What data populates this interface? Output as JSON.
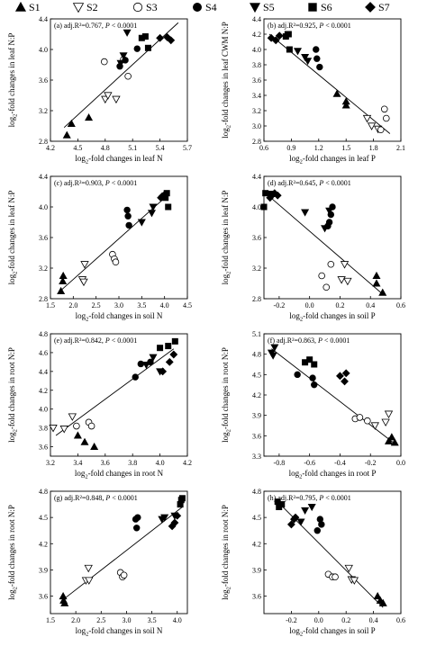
{
  "legend": [
    {
      "label": "S1",
      "marker": "triangle-up-filled"
    },
    {
      "label": "S2",
      "marker": "triangle-down-open"
    },
    {
      "label": "S3",
      "marker": "circle-open"
    },
    {
      "label": "S4",
      "marker": "circle-filled"
    },
    {
      "label": "S5",
      "marker": "triangle-down-filled"
    },
    {
      "label": "S6",
      "marker": "square-filled"
    },
    {
      "label": "S7",
      "marker": "diamond-filled"
    }
  ],
  "chart_data": [
    {
      "type": "scatter",
      "panel": "(a)",
      "stats": "adj.R²=0.767, P < 0.0001",
      "xlabel": "log2-fold changes in leaf N",
      "ylabel": "log2-fold changes in leaf N:P",
      "xlim": [
        4.2,
        5.7
      ],
      "ylim": [
        2.8,
        4.4
      ],
      "xticks": [
        4.2,
        4.5,
        4.8,
        5.1,
        5.4,
        5.7
      ],
      "yticks": [
        2.8,
        3.2,
        3.6,
        4.0,
        4.4
      ],
      "xtick_labels": [
        "4.2",
        "4.5",
        "4.8",
        "5.1",
        "5.4",
        "5.7"
      ],
      "ytick_labels": [
        "2.8",
        "3.2",
        "3.6",
        "4.0",
        "4.4"
      ],
      "fit": [
        [
          4.35,
          2.98
        ],
        [
          5.6,
          4.35
        ]
      ],
      "series": [
        {
          "name": "S1",
          "x": [
            4.38,
            4.43,
            4.62
          ],
          "y": [
            2.88,
            3.03,
            3.11
          ]
        },
        {
          "name": "S2",
          "x": [
            4.8,
            4.83,
            4.92
          ],
          "y": [
            3.35,
            3.4,
            3.35
          ]
        },
        {
          "name": "S3",
          "x": [
            4.79,
            5.0,
            5.05
          ],
          "y": [
            3.84,
            3.87,
            3.65
          ]
        },
        {
          "name": "S4",
          "x": [
            4.96,
            5.02,
            5.15
          ],
          "y": [
            3.78,
            3.86,
            4.01
          ]
        },
        {
          "name": "S5",
          "x": [
            4.97,
            5.0,
            5.04
          ],
          "y": [
            3.82,
            3.92,
            4.22
          ]
        },
        {
          "name": "S6",
          "x": [
            5.2,
            5.24,
            5.27
          ],
          "y": [
            4.15,
            4.17,
            4.02
          ]
        },
        {
          "name": "S7",
          "x": [
            5.4,
            5.48,
            5.52
          ],
          "y": [
            4.15,
            4.16,
            4.12
          ]
        }
      ]
    },
    {
      "type": "scatter",
      "panel": "(b)",
      "stats": "adj.R²=0.925, P < 0.0001",
      "xlabel": "log2-fold changes in leaf P",
      "ylabel": "log2-fold changes in leaf CWM N:P",
      "xlim": [
        0.6,
        2.1
      ],
      "ylim": [
        2.8,
        4.4
      ],
      "xticks": [
        0.6,
        0.9,
        1.2,
        1.5,
        1.8,
        2.1
      ],
      "yticks": [
        2.8,
        3.0,
        3.2,
        3.4,
        3.6,
        3.8,
        4.0,
        4.2,
        4.4
      ],
      "xtick_labels": [
        "0.6",
        "0.9",
        "1.2",
        "1.5",
        "1.8",
        "2.1"
      ],
      "ytick_labels": [
        "2.8",
        "3.0",
        "3.2",
        "3.4",
        "3.6",
        "3.8",
        "4.0",
        "4.2",
        "4.4"
      ],
      "fit": [
        [
          0.66,
          4.2
        ],
        [
          1.98,
          2.9
        ]
      ],
      "series": [
        {
          "name": "S1",
          "x": [
            1.4,
            1.5,
            1.5
          ],
          "y": [
            3.42,
            3.32,
            3.27
          ]
        },
        {
          "name": "S2",
          "x": [
            1.73,
            1.78,
            1.85
          ],
          "y": [
            3.1,
            3.0,
            2.96
          ]
        },
        {
          "name": "S3",
          "x": [
            1.88,
            1.92,
            1.94
          ],
          "y": [
            2.95,
            3.22,
            3.1
          ]
        },
        {
          "name": "S4",
          "x": [
            1.17,
            1.18,
            1.21
          ],
          "y": [
            4.0,
            3.88,
            3.77
          ]
        },
        {
          "name": "S5",
          "x": [
            0.97,
            1.05,
            1.08
          ],
          "y": [
            3.98,
            3.9,
            3.85
          ]
        },
        {
          "name": "S6",
          "x": [
            0.84,
            0.86,
            0.87,
            0.88
          ],
          "y": [
            4.17,
            4.2,
            4.2,
            4.0
          ]
        },
        {
          "name": "S7",
          "x": [
            0.68,
            0.73,
            0.77
          ],
          "y": [
            4.15,
            4.12,
            4.18
          ]
        }
      ]
    },
    {
      "type": "scatter",
      "panel": "(c)",
      "stats": "adj.R²=0.903, P < 0.0001",
      "xlabel": "log2-fold changes in soil N",
      "ylabel": "log2-fold changes in leaf N:P",
      "xlim": [
        1.5,
        4.5
      ],
      "ylim": [
        2.8,
        4.4
      ],
      "xticks": [
        1.5,
        2.0,
        2.5,
        3.0,
        3.5,
        4.0,
        4.5
      ],
      "yticks": [
        2.8,
        3.2,
        3.6,
        4.0,
        4.4
      ],
      "xtick_labels": [
        "1.5",
        "2.0",
        "2.5",
        "3.0",
        "3.5",
        "4.0",
        "4.5"
      ],
      "ytick_labels": [
        "2.8",
        "3.2",
        "3.6",
        "4.0",
        "4.4"
      ],
      "fit": [
        [
          1.75,
          2.92
        ],
        [
          4.1,
          4.17
        ]
      ],
      "series": [
        {
          "name": "S1",
          "x": [
            1.73,
            1.77,
            1.78
          ],
          "y": [
            2.9,
            3.03,
            3.1
          ]
        },
        {
          "name": "S2",
          "x": [
            2.2,
            2.23,
            2.25
          ],
          "y": [
            3.05,
            3.02,
            3.25
          ]
        },
        {
          "name": "S3",
          "x": [
            2.86,
            2.9,
            2.93
          ],
          "y": [
            3.38,
            3.32,
            3.28
          ]
        },
        {
          "name": "S4",
          "x": [
            3.18,
            3.2,
            3.22
          ],
          "y": [
            3.96,
            3.88,
            3.76
          ]
        },
        {
          "name": "S5",
          "x": [
            3.5,
            3.72,
            3.75
          ],
          "y": [
            3.8,
            3.92,
            4.0
          ]
        },
        {
          "name": "S6",
          "x": [
            4.02,
            4.05,
            4.08
          ],
          "y": [
            4.12,
            4.18,
            4.0
          ]
        },
        {
          "name": "S7",
          "x": [
            3.92,
            3.95,
            4.0
          ],
          "y": [
            4.12,
            4.14,
            4.16
          ]
        }
      ]
    },
    {
      "type": "scatter",
      "panel": "(d)",
      "stats": "adj.R²=0.645, P < 0.0001",
      "xlabel": "log2-fold changes in soil P",
      "ylabel": "log2-fold changes in leaf N:P",
      "xlim": [
        -0.3,
        0.6
      ],
      "ylim": [
        2.8,
        4.4
      ],
      "xticks": [
        -0.2,
        0.0,
        0.2,
        0.4,
        0.6
      ],
      "yticks": [
        2.8,
        3.2,
        3.6,
        4.0,
        4.4
      ],
      "xtick_labels": [
        "-0.2",
        "0.0",
        "0.2",
        "0.4",
        "0.6"
      ],
      "ytick_labels": [
        "2.8",
        "3.2",
        "3.6",
        "4.0",
        "4.4"
      ],
      "fit": [
        [
          -0.29,
          4.18
        ],
        [
          0.48,
          2.86
        ]
      ],
      "series": [
        {
          "name": "S1",
          "x": [
            0.44,
            0.44,
            0.48
          ],
          "y": [
            3.1,
            3.0,
            2.88
          ]
        },
        {
          "name": "S2",
          "x": [
            0.21,
            0.23,
            0.25
          ],
          "y": [
            3.05,
            3.25,
            3.03
          ]
        },
        {
          "name": "S3",
          "x": [
            0.08,
            0.11,
            0.14
          ],
          "y": [
            3.1,
            2.95,
            3.25
          ]
        },
        {
          "name": "S4",
          "x": [
            0.12,
            0.13,
            0.14,
            0.15
          ],
          "y": [
            3.75,
            3.8,
            3.9,
            4.0
          ]
        },
        {
          "name": "S5",
          "x": [
            -0.03,
            0.1,
            0.13
          ],
          "y": [
            3.93,
            3.72,
            3.95
          ]
        },
        {
          "name": "S6",
          "x": [
            -0.3,
            -0.29,
            -0.25
          ],
          "y": [
            4.0,
            4.18,
            4.17
          ]
        },
        {
          "name": "S7",
          "x": [
            -0.26,
            -0.23,
            -0.21
          ],
          "y": [
            4.12,
            4.18,
            4.15
          ]
        }
      ]
    },
    {
      "type": "scatter",
      "panel": "(e)",
      "stats": "adj.R²=0.842, P < 0.0001",
      "xlabel": "log2-fold changes in root N",
      "ylabel": "log2-fold changes in root N:P",
      "xlim": [
        3.2,
        4.2
      ],
      "ylim": [
        3.5,
        4.8
      ],
      "xticks": [
        3.2,
        3.4,
        3.6,
        3.8,
        4.0,
        4.2
      ],
      "yticks": [
        3.6,
        3.8,
        4.0,
        4.2,
        4.4,
        4.6,
        4.8
      ],
      "xtick_labels": [
        "3.2",
        "3.4",
        "3.6",
        "3.8",
        "4.0",
        "4.2"
      ],
      "ytick_labels": [
        "3.6",
        "3.8",
        "4.0",
        "4.2",
        "4.4",
        "4.6",
        "4.8"
      ],
      "fit": [
        [
          3.24,
          3.72
        ],
        [
          4.1,
          4.64
        ]
      ],
      "series": [
        {
          "name": "S1",
          "x": [
            3.4,
            3.45,
            3.52
          ],
          "y": [
            3.72,
            3.65,
            3.6
          ]
        },
        {
          "name": "S2",
          "x": [
            3.22,
            3.3,
            3.36
          ],
          "y": [
            3.8,
            3.79,
            3.92
          ]
        },
        {
          "name": "S3",
          "x": [
            3.39,
            3.48,
            3.5
          ],
          "y": [
            3.82,
            3.86,
            3.82
          ]
        },
        {
          "name": "S4",
          "x": [
            3.82,
            3.86,
            3.93
          ],
          "y": [
            4.34,
            4.48,
            4.5
          ]
        },
        {
          "name": "S5",
          "x": [
            3.9,
            3.95,
            4.0
          ],
          "y": [
            4.47,
            4.55,
            4.4
          ]
        },
        {
          "name": "S6",
          "x": [
            4.0,
            4.06,
            4.11
          ],
          "y": [
            4.65,
            4.67,
            4.72
          ]
        },
        {
          "name": "S7",
          "x": [
            4.02,
            4.07,
            4.1
          ],
          "y": [
            4.4,
            4.5,
            4.58
          ]
        }
      ]
    },
    {
      "type": "scatter",
      "panel": "(f)",
      "stats": "adj.R²=0.863, P < 0.0001",
      "xlabel": "log2-fold changes in root P",
      "ylabel": "log2-fold changes in root N:P",
      "xlim": [
        -0.9,
        0.0
      ],
      "ylim": [
        3.3,
        5.1
      ],
      "xticks": [
        -0.8,
        -0.6,
        -0.4,
        -0.2,
        0.0
      ],
      "yticks": [
        3.3,
        3.6,
        3.9,
        4.2,
        4.5,
        4.8,
        5.1
      ],
      "xtick_labels": [
        "-0.8",
        "-0.6",
        "-0.4",
        "-0.2",
        "0.0"
      ],
      "ytick_labels": [
        "3.3",
        "3.6",
        "3.9",
        "4.2",
        "4.5",
        "4.8",
        "5.1"
      ],
      "fit": [
        [
          -0.85,
          4.88
        ],
        [
          -0.05,
          3.5
        ]
      ],
      "series": [
        {
          "name": "S1",
          "x": [
            -0.08,
            -0.06,
            -0.04
          ],
          "y": [
            3.52,
            3.58,
            3.5
          ]
        },
        {
          "name": "S2",
          "x": [
            -0.17,
            -0.1,
            -0.08
          ],
          "y": [
            3.75,
            3.8,
            3.92
          ]
        },
        {
          "name": "S3",
          "x": [
            -0.3,
            -0.27,
            -0.22
          ],
          "y": [
            3.85,
            3.87,
            3.82
          ]
        },
        {
          "name": "S4",
          "x": [
            -0.68,
            -0.58,
            -0.57
          ],
          "y": [
            4.5,
            4.45,
            4.35
          ]
        },
        {
          "name": "S5",
          "x": [
            -0.85,
            -0.84,
            -0.83
          ],
          "y": [
            4.82,
            4.78,
            4.9
          ]
        },
        {
          "name": "S6",
          "x": [
            -0.63,
            -0.6,
            -0.57
          ],
          "y": [
            4.68,
            4.72,
            4.65
          ]
        },
        {
          "name": "S7",
          "x": [
            -0.4,
            -0.37,
            -0.36
          ],
          "y": [
            4.48,
            4.4,
            4.52
          ]
        }
      ]
    },
    {
      "type": "scatter",
      "panel": "(g)",
      "stats": "adj.R²=0.848, P < 0.0001",
      "xlabel": "log2-fold changes in soil N",
      "ylabel": "log2-fold changes in root N:P",
      "xlim": [
        1.5,
        4.2
      ],
      "ylim": [
        3.4,
        4.8
      ],
      "xticks": [
        1.5,
        2.0,
        2.5,
        3.0,
        3.5,
        4.0
      ],
      "yticks": [
        3.6,
        3.9,
        4.2,
        4.5,
        4.8
      ],
      "xtick_labels": [
        "1.5",
        "2.0",
        "2.5",
        "3.0",
        "3.5",
        "4.0"
      ],
      "ytick_labels": [
        "3.6",
        "3.9",
        "4.2",
        "4.5",
        "4.8"
      ],
      "fit": [
        [
          1.75,
          3.56
        ],
        [
          4.1,
          4.62
        ]
      ],
      "series": [
        {
          "name": "S1",
          "x": [
            1.75,
            1.76,
            1.78
          ],
          "y": [
            3.6,
            3.55,
            3.52
          ]
        },
        {
          "name": "S2",
          "x": [
            2.2,
            2.25,
            2.26
          ],
          "y": [
            3.78,
            3.92,
            3.78
          ]
        },
        {
          "name": "S3",
          "x": [
            2.88,
            2.92,
            2.95
          ],
          "y": [
            3.87,
            3.82,
            3.84
          ]
        },
        {
          "name": "S4",
          "x": [
            3.18,
            3.2,
            3.22
          ],
          "y": [
            4.48,
            4.38,
            4.5
          ]
        },
        {
          "name": "S5",
          "x": [
            3.7,
            3.75,
            3.95
          ],
          "y": [
            4.48,
            4.5,
            4.52
          ]
        },
        {
          "name": "S6",
          "x": [
            4.06,
            4.08,
            4.1
          ],
          "y": [
            4.65,
            4.7,
            4.72
          ]
        },
        {
          "name": "S7",
          "x": [
            3.9,
            3.95,
            4.0
          ],
          "y": [
            4.4,
            4.44,
            4.52
          ]
        }
      ]
    },
    {
      "type": "scatter",
      "panel": "(h)",
      "stats": "adj.R²=0.795, P < 0.0001",
      "xlabel": "log2-fold changes in soil P",
      "ylabel": "log2-fold changes in root N:P",
      "xlim": [
        -0.4,
        0.6
      ],
      "ylim": [
        3.4,
        4.8
      ],
      "xticks": [
        -0.2,
        0.0,
        0.2,
        0.4,
        0.6
      ],
      "yticks": [
        3.6,
        3.9,
        4.2,
        4.5,
        4.8
      ],
      "xtick_labels": [
        "-0.2",
        "0.0",
        "0.2",
        "0.4",
        "0.6"
      ],
      "ytick_labels": [
        "3.6",
        "3.9",
        "4.2",
        "4.5",
        "4.8"
      ],
      "fit": [
        [
          -0.3,
          4.68
        ],
        [
          0.47,
          3.47
        ]
      ],
      "series": [
        {
          "name": "S1",
          "x": [
            0.43,
            0.45,
            0.47
          ],
          "y": [
            3.6,
            3.55,
            3.52
          ]
        },
        {
          "name": "S2",
          "x": [
            0.22,
            0.24,
            0.26
          ],
          "y": [
            3.92,
            3.79,
            3.78
          ]
        },
        {
          "name": "S3",
          "x": [
            0.07,
            0.1,
            0.12
          ],
          "y": [
            3.85,
            3.82,
            3.82
          ]
        },
        {
          "name": "S4",
          "x": [
            -0.01,
            0.01,
            0.02
          ],
          "y": [
            4.35,
            4.48,
            4.42
          ]
        },
        {
          "name": "S5",
          "x": [
            -0.13,
            -0.1,
            -0.05
          ],
          "y": [
            4.45,
            4.58,
            4.62
          ]
        },
        {
          "name": "S6",
          "x": [
            -0.3,
            -0.29,
            -0.27
          ],
          "y": [
            4.68,
            4.62,
            4.65
          ]
        },
        {
          "name": "S7",
          "x": [
            -0.2,
            -0.18,
            -0.17
          ],
          "y": [
            4.42,
            4.48,
            4.5
          ]
        }
      ]
    }
  ]
}
